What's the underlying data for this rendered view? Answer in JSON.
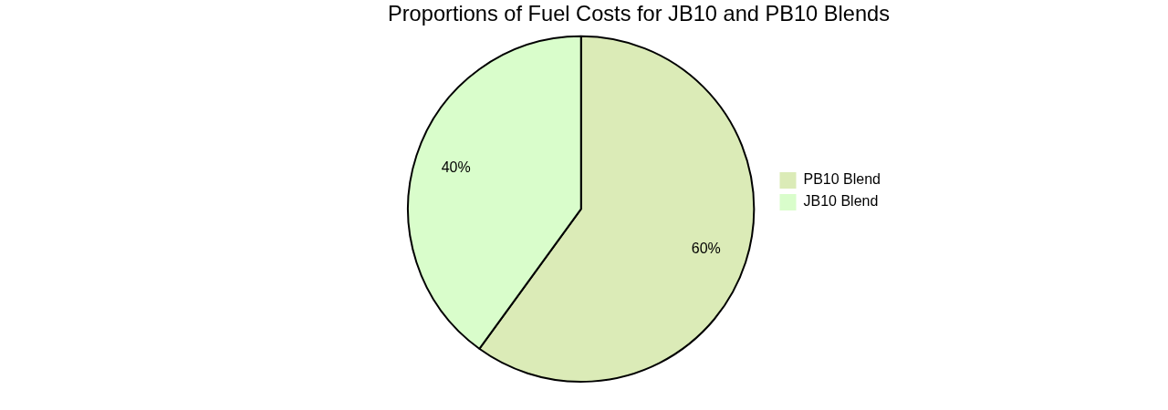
{
  "chart_data": {
    "type": "pie",
    "title": "Proportions of Fuel Costs for JB10 and PB10 Blends",
    "categories": [
      "PB10 Blend",
      "JB10 Blend"
    ],
    "values": [
      60,
      40
    ],
    "colors": [
      "#dbebb7",
      "#d9fdcb"
    ],
    "data_labels": true,
    "value_labels": [
      "60%",
      "40%"
    ],
    "legend": "right"
  }
}
